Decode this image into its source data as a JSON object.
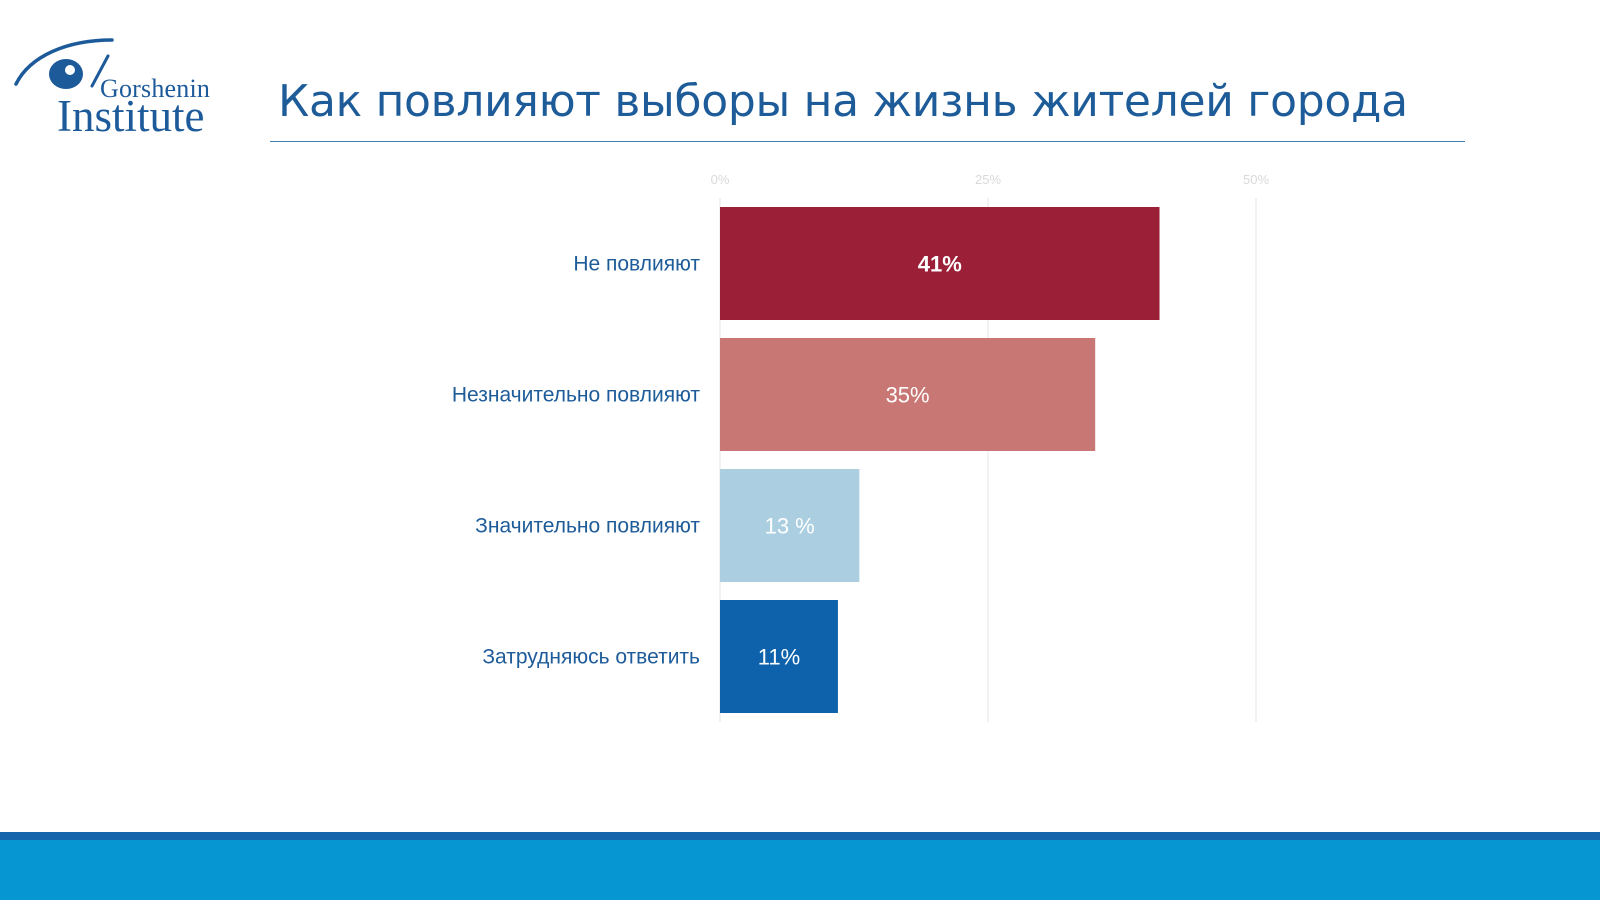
{
  "logo": {
    "word_top": "Gorshenin",
    "word_bottom": "Institute"
  },
  "title": "Как повлияют выборы на жизнь жителей города",
  "colors": {
    "title": "#1e5c99",
    "category_label": "#1e5c99",
    "axis_tick": "#d9d9d9",
    "gridline": "#e6e6e6",
    "footer_stripe": "#1565ad",
    "footer": "#0696d2"
  },
  "chart_data": {
    "type": "bar",
    "orientation": "horizontal",
    "categories": [
      "Не повлияют",
      "Незначительно повлияют",
      "Значительно повлияют",
      "Затрудняюсь ответить"
    ],
    "values": [
      41,
      35,
      13,
      11
    ],
    "value_labels": [
      "41%",
      "35%",
      "13 %",
      "11%"
    ],
    "bar_colors": [
      "#9a1f37",
      "#c87774",
      "#abcfe0",
      "#0d62ab"
    ],
    "xlim": [
      0,
      50
    ],
    "xticks": [
      0,
      25,
      50
    ],
    "xtick_labels": [
      "0%",
      "25%",
      "50%"
    ],
    "grid": true,
    "legend": false
  }
}
